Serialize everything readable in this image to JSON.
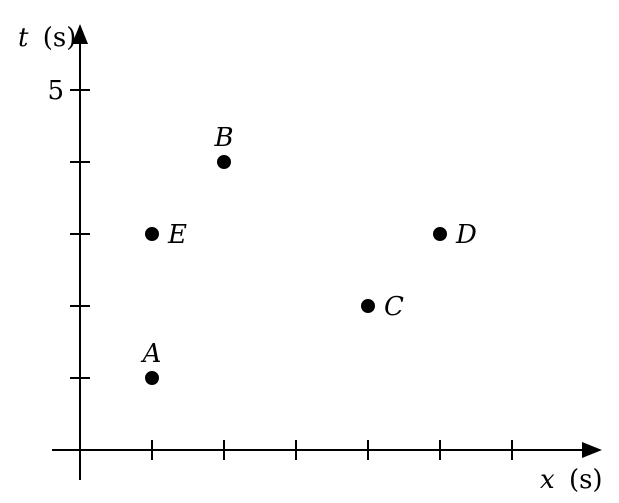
{
  "chart_data": {
    "type": "scatter",
    "title": "",
    "x_axis": {
      "variable": "x",
      "unit": "(s)",
      "range": [
        0,
        6
      ],
      "ticks": [
        1,
        2,
        3,
        4,
        5,
        6
      ],
      "tick_labels": []
    },
    "y_axis": {
      "variable": "t",
      "unit": "(s)",
      "range": [
        0,
        5
      ],
      "ticks": [
        1,
        2,
        3,
        4,
        5
      ],
      "tick_labels": [
        {
          "value": 5,
          "label": "5"
        }
      ]
    },
    "grid": false,
    "legend": "none",
    "points": [
      {
        "label": "A",
        "x": 1,
        "y": 1,
        "label_position": "above"
      },
      {
        "label": "B",
        "x": 2,
        "y": 4,
        "label_position": "above"
      },
      {
        "label": "C",
        "x": 4,
        "y": 2,
        "label_position": "right"
      },
      {
        "label": "D",
        "x": 5,
        "y": 3,
        "label_position": "right"
      },
      {
        "label": "E",
        "x": 1,
        "y": 3,
        "label_position": "right"
      }
    ],
    "colors": {
      "marks": "#000000",
      "background": "#ffffff"
    }
  }
}
